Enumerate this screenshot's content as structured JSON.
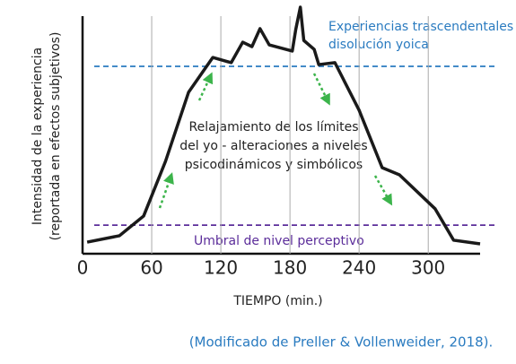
{
  "chart_data": {
    "type": "line",
    "x_label": "TIEMPO (min.)",
    "y_label": [
      "Intensidad de la experiencia",
      "(reportada en efectos subjetivos)"
    ],
    "xlim": [
      0,
      345
    ],
    "xticks": [
      0,
      60,
      120,
      180,
      240,
      300
    ],
    "ylim": [
      0,
      100
    ],
    "grid": true,
    "series": [
      {
        "color": "#1a1a1a",
        "x": [
          4,
          32,
          53,
          72,
          92,
          113,
          129,
          139,
          147,
          154,
          162,
          182,
          185,
          189,
          192,
          201,
          205,
          219,
          240,
          260,
          275,
          306,
          322,
          345
        ],
        "values": [
          4.7,
          7.3,
          15.3,
          37.5,
          65.5,
          79.6,
          77.5,
          85.8,
          84,
          91.3,
          84.7,
          82.2,
          90.9,
          100,
          86.5,
          82.9,
          76.7,
          77.5,
          58.2,
          34.9,
          32,
          18.2,
          5.5,
          4
        ]
      }
    ],
    "reference_lines": [
      {
        "value": 76,
        "color": "#2a7bc0",
        "label": [
          "Experiencias trascendentales -",
          "disolución yoica"
        ]
      },
      {
        "value": 11.6,
        "color": "#5b2d9a",
        "label": [
          "Umbral de nivel perceptivo"
        ]
      }
    ],
    "annotation": [
      "Relajamiento de los límites",
      "del yo - alteraciones a niveles",
      "psicodinámicos y simbólicos"
    ]
  },
  "caption": "(Modificado de Preller & Vollenweider, 2018)."
}
